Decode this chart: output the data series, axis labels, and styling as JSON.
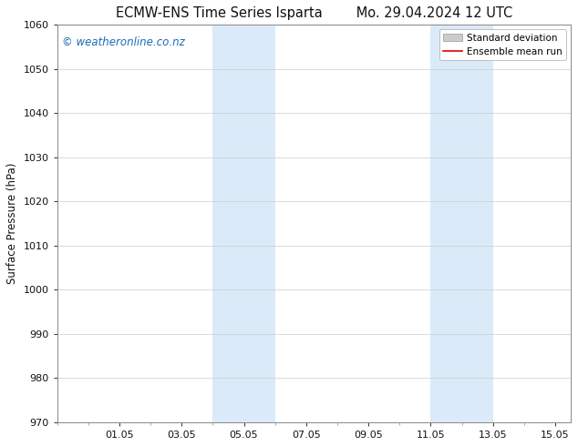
{
  "title": "ECMW-ENS Time Series Isparta        Mo. 29.04.2024 12 UTC",
  "title_left": "ECMW-ENS Time Series Isparta",
  "title_right": "Mo. 29.04.2024 12 UTC",
  "ylabel": "Surface Pressure (hPa)",
  "ylim": [
    970,
    1060
  ],
  "yticks": [
    970,
    980,
    990,
    1000,
    1010,
    1020,
    1030,
    1040,
    1050,
    1060
  ],
  "xtick_labels": [
    "01.05",
    "03.05",
    "05.05",
    "07.05",
    "09.05",
    "11.05",
    "13.05",
    "15.05"
  ],
  "xtick_positions": [
    2,
    4,
    6,
    8,
    10,
    12,
    14,
    16
  ],
  "xlim": [
    0,
    16.5
  ],
  "bg_color": "#ffffff",
  "plot_bg_color": "#ffffff",
  "shaded_regions": [
    {
      "x_start": 5.0,
      "x_end": 7.0,
      "color": "#daeaf8"
    },
    {
      "x_start": 12.0,
      "x_end": 14.0,
      "color": "#daeaf8"
    }
  ],
  "watermark_text": "© weatheronline.co.nz",
  "watermark_color": "#1a6bb5",
  "legend_std_color": "#cccccc",
  "legend_mean_color": "#dd0000",
  "grid_color": "#cccccc",
  "spine_color": "#888888",
  "font_color": "#111111",
  "title_fontsize": 10.5,
  "axis_label_fontsize": 8.5,
  "tick_fontsize": 8,
  "watermark_fontsize": 8.5,
  "legend_fontsize": 7.5
}
